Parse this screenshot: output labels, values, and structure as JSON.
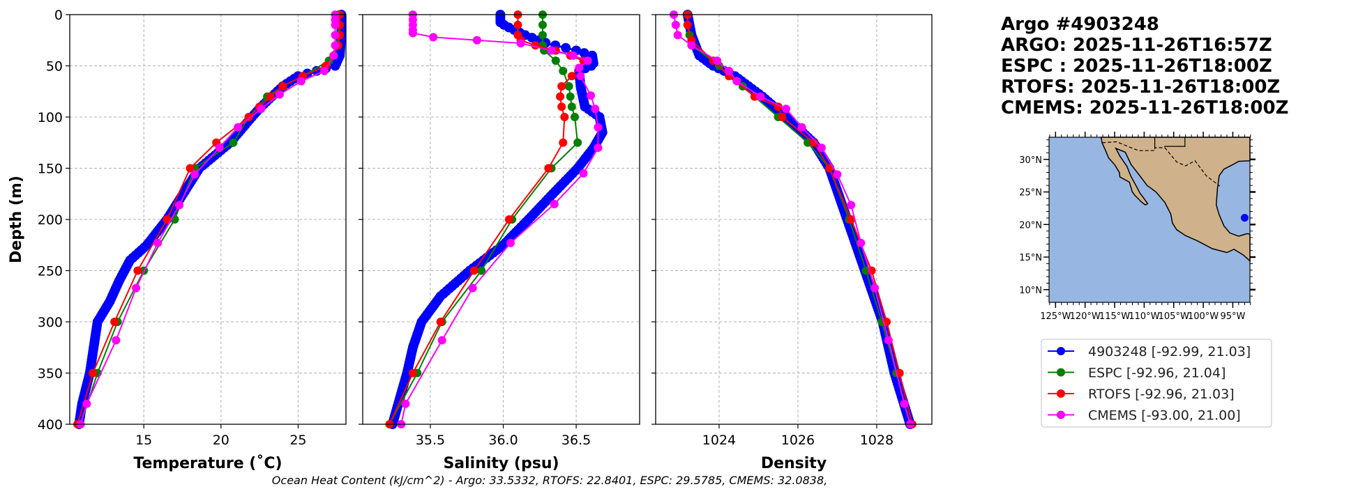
{
  "header": {
    "lines": [
      "Argo #4903248",
      "ARGO: 2025-11-26T16:57Z",
      "ESPC : 2025-11-26T18:00Z",
      "RTOFS: 2025-11-26T18:00Z",
      "CMEMS: 2025-11-26T18:00Z"
    ]
  },
  "footer": "Ocean Heat Content (kJ/cm^2) - Argo: 33.5332,  RTOFS: 22.8401,  ESPC: 29.5785,  CMEMS: 32.0838,",
  "colors": {
    "argo": "#0000ff",
    "espc": "#008000",
    "rtofs": "#ff0000",
    "cmems": "#ff00ff",
    "ocean": "#97b6e1",
    "land": "#cfb28b"
  },
  "legend": [
    {
      "label": "4903248 [-92.99, 21.03]",
      "color": "#0000ff"
    },
    {
      "label": "ESPC [-92.96, 21.04]",
      "color": "#008000"
    },
    {
      "label": "RTOFS [-92.96, 21.03]",
      "color": "#ff0000"
    },
    {
      "label": "CMEMS [-93.00, 21.00]",
      "color": "#ff00ff"
    }
  ],
  "map": {
    "lat_ticks": [
      {
        "v": 30,
        "label": "30°N"
      },
      {
        "v": 25,
        "label": "25°N"
      },
      {
        "v": 20,
        "label": "20°N"
      },
      {
        "v": 15,
        "label": "15°N"
      },
      {
        "v": 10,
        "label": "10°N"
      }
    ],
    "lon_ticks": [
      {
        "v": -125,
        "label": "125°W"
      },
      {
        "v": -120,
        "label": "120°W"
      },
      {
        "v": -115,
        "label": "115°W"
      },
      {
        "v": -110,
        "label": "110°W"
      },
      {
        "v": -105,
        "label": "105°W"
      },
      {
        "v": -100,
        "label": "100°W"
      },
      {
        "v": -95,
        "label": "95°W"
      }
    ],
    "float_position": {
      "lon": -92.99,
      "lat": 21.03
    }
  },
  "chart_data": [
    {
      "type": "line",
      "xlabel": "Temperature (˚C)",
      "ylabel": "Depth (m)",
      "xlim": [
        10.2,
        28.1
      ],
      "ylim": [
        400,
        0
      ],
      "xticks": [
        15,
        20,
        25
      ],
      "yticks": [
        0,
        50,
        100,
        150,
        200,
        250,
        300,
        350,
        400
      ],
      "grid": true,
      "series": [
        {
          "name": "4903248",
          "color": "#0000ff",
          "dense": true,
          "depth": [
            0,
            20,
            40,
            50,
            55,
            60,
            70,
            90,
            100,
            125,
            150,
            200,
            225,
            240,
            260,
            280,
            300,
            320,
            350,
            380,
            400
          ],
          "values": [
            27.8,
            27.8,
            27.7,
            27.4,
            26.2,
            25.0,
            24.0,
            22.6,
            22.0,
            20.6,
            18.6,
            16.5,
            15.2,
            14.1,
            13.4,
            12.8,
            12.0,
            11.8,
            11.5,
            11.0,
            10.8
          ]
        },
        {
          "name": "ESPC",
          "color": "#008000",
          "depth": [
            0,
            10,
            20,
            30,
            45,
            60,
            70,
            80,
            100,
            125,
            150,
            200,
            250,
            300,
            350,
            400
          ],
          "values": [
            27.6,
            27.6,
            27.6,
            27.5,
            27.0,
            25.3,
            24.0,
            23.0,
            21.8,
            20.8,
            18.3,
            17.0,
            15.0,
            13.3,
            12.0,
            10.9
          ]
        },
        {
          "name": "RTOFS",
          "color": "#ff0000",
          "depth": [
            0,
            10,
            20,
            30,
            40,
            50,
            60,
            70,
            80,
            90,
            100,
            125,
            150,
            200,
            250,
            300,
            350,
            400
          ],
          "values": [
            27.7,
            27.7,
            27.7,
            27.6,
            27.3,
            26.8,
            25.3,
            24.0,
            23.2,
            22.5,
            21.8,
            19.7,
            18.0,
            16.5,
            14.6,
            13.1,
            11.7,
            10.7
          ]
        },
        {
          "name": "CMEMS",
          "color": "#ff00ff",
          "depth": [
            0,
            5,
            10,
            20,
            30,
            40,
            55,
            65,
            78,
            92,
            110,
            130,
            156,
            186,
            223,
            267,
            318,
            380,
            400
          ],
          "values": [
            27.4,
            27.4,
            27.4,
            27.4,
            27.4,
            27.3,
            26.7,
            25.2,
            23.8,
            22.6,
            21.1,
            19.9,
            18.3,
            17.3,
            15.9,
            14.5,
            13.2,
            11.3,
            10.9
          ]
        }
      ]
    },
    {
      "type": "line",
      "xlabel": "Salinity (psu)",
      "ylabel": "",
      "xlim": [
        35.036,
        36.935
      ],
      "ylim": [
        400,
        0
      ],
      "xticks": [
        35.5,
        36.0,
        36.5
      ],
      "xticklabels": [
        "35.5",
        "36.0",
        "36.5"
      ],
      "yticks": [
        0,
        50,
        100,
        150,
        200,
        250,
        300,
        350,
        400
      ],
      "grid": true,
      "series": [
        {
          "name": "4903248",
          "color": "#0000ff",
          "dense": true,
          "depth": [
            0,
            8,
            12,
            20,
            28,
            35,
            40,
            49,
            55,
            70,
            90,
            100,
            115,
            130,
            150,
            175,
            199,
            225,
            250,
            275,
            300,
            325,
            350,
            380,
            400
          ],
          "values": [
            35.98,
            35.98,
            36.03,
            36.15,
            36.3,
            36.5,
            36.61,
            36.62,
            36.52,
            36.53,
            36.56,
            36.66,
            36.68,
            36.62,
            36.51,
            36.34,
            36.18,
            36.0,
            35.77,
            35.57,
            35.44,
            35.38,
            35.34,
            35.28,
            35.24
          ]
        },
        {
          "name": "ESPC",
          "color": "#008000",
          "depth": [
            0,
            10,
            20,
            30,
            35,
            45,
            55,
            70,
            80,
            90,
            100,
            125,
            150,
            200,
            250,
            300,
            350,
            400
          ],
          "values": [
            36.27,
            36.27,
            36.27,
            36.27,
            36.28,
            36.36,
            36.41,
            36.45,
            36.46,
            36.47,
            36.49,
            36.51,
            36.33,
            36.06,
            35.85,
            35.58,
            35.41,
            35.22
          ]
        },
        {
          "name": "RTOFS",
          "color": "#ff0000",
          "depth": [
            0,
            10,
            20,
            25,
            30,
            35,
            40,
            45,
            60,
            70,
            80,
            90,
            100,
            125,
            150,
            200,
            250,
            300,
            350,
            400
          ],
          "values": [
            36.1,
            36.1,
            36.1,
            36.12,
            36.22,
            36.36,
            36.46,
            36.55,
            36.47,
            36.4,
            36.39,
            36.4,
            36.42,
            36.41,
            36.31,
            36.04,
            35.8,
            35.57,
            35.38,
            35.22
          ]
        },
        {
          "name": "CMEMS",
          "color": "#ff00ff",
          "depth": [
            0,
            5,
            10,
            15,
            18,
            22,
            25,
            28,
            35,
            40,
            45,
            52,
            60,
            79,
            92,
            110,
            130,
            155,
            185,
            223,
            267,
            318,
            380,
            400
          ],
          "values": [
            35.38,
            35.38,
            35.38,
            35.38,
            35.38,
            35.52,
            35.82,
            36.12,
            36.33,
            36.48,
            36.58,
            36.52,
            36.53,
            36.6,
            36.63,
            36.65,
            36.65,
            36.55,
            36.35,
            36.05,
            35.79,
            35.58,
            35.33,
            35.3
          ]
        }
      ]
    },
    {
      "type": "line",
      "xlabel": "Density",
      "ylabel": "",
      "xlim": [
        1022.39,
        1029.4
      ],
      "ylim": [
        400,
        0
      ],
      "xticks": [
        1024,
        1026,
        1028
      ],
      "yticks": [
        0,
        50,
        100,
        150,
        200,
        250,
        300,
        350,
        400
      ],
      "grid": true,
      "series": [
        {
          "name": "4903248",
          "color": "#0000ff",
          "dense": true,
          "depth": [
            0,
            20,
            40,
            50,
            60,
            80,
            100,
            125,
            150,
            200,
            250,
            300,
            350,
            400
          ],
          "values": [
            1023.2,
            1023.3,
            1023.5,
            1023.85,
            1024.4,
            1025.1,
            1025.7,
            1026.4,
            1026.8,
            1027.25,
            1027.7,
            1028.15,
            1028.45,
            1028.85
          ]
        },
        {
          "name": "ESPC",
          "color": "#008000",
          "depth": [
            0,
            10,
            20,
            30,
            50,
            70,
            100,
            125,
            150,
            200,
            250,
            300,
            350,
            400
          ],
          "values": [
            1023.2,
            1023.2,
            1023.25,
            1023.3,
            1024.0,
            1024.6,
            1025.5,
            1026.25,
            1026.8,
            1027.3,
            1027.73,
            1028.13,
            1028.5,
            1028.85
          ]
        },
        {
          "name": "RTOFS",
          "color": "#ff0000",
          "depth": [
            0,
            10,
            25,
            45,
            60,
            80,
            90,
            100,
            125,
            150,
            200,
            250,
            300,
            350,
            400
          ],
          "values": [
            1023.2,
            1023.2,
            1023.3,
            1023.85,
            1024.25,
            1024.9,
            1025.5,
            1025.6,
            1026.4,
            1026.8,
            1027.35,
            1027.87,
            1028.25,
            1028.58,
            1028.9
          ]
        },
        {
          "name": "CMEMS",
          "color": "#ff00ff",
          "depth": [
            0,
            10,
            20,
            30,
            45,
            55,
            65,
            80,
            92,
            110,
            130,
            156,
            186,
            223,
            267,
            318,
            380,
            400
          ],
          "values": [
            1022.85,
            1022.9,
            1022.95,
            1023.3,
            1023.95,
            1024.25,
            1024.45,
            1025.05,
            1025.7,
            1026.1,
            1026.6,
            1027.0,
            1027.35,
            1027.6,
            1027.95,
            1028.3,
            1028.7,
            1028.85
          ]
        }
      ]
    }
  ]
}
